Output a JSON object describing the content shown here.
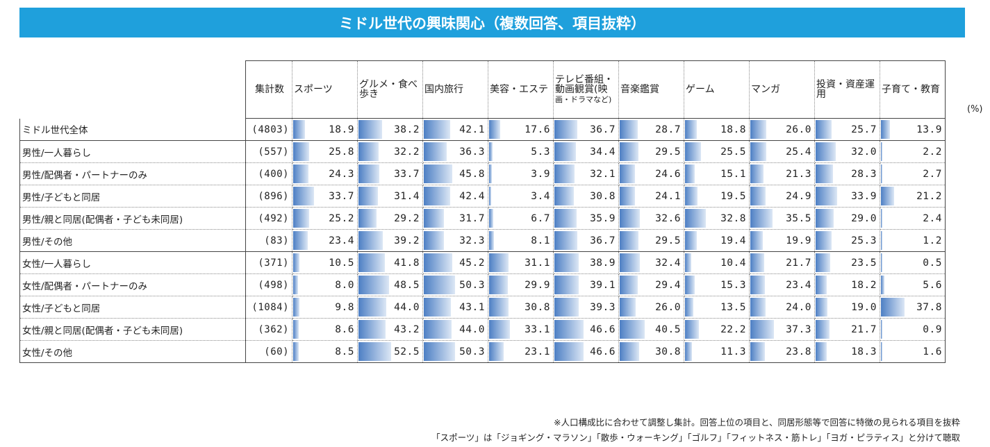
{
  "title": "ミドル世代の興味関心（複数回答、項目抜粋）",
  "unit": "(%)",
  "count_header": "集計数",
  "notes": [
    "※人口構成比に合わせて調整し集計。回答上位の項目と、同居形態等で回答に特徴の見られる項目を抜粋",
    "「スポーツ」は「ジョギング・マラソン」「散歩・ウォーキング」「ゴルフ」「フィットネス・筋トレ」「ヨガ・ピラティス」と分けて聴取"
  ],
  "chart_data": {
    "type": "table",
    "title": "ミドル世代の興味関心（複数回答、項目抜粋）",
    "columns": [
      {
        "main": "スポーツ",
        "small": ""
      },
      {
        "main": "グルメ・食べ歩き",
        "small": ""
      },
      {
        "main": "国内旅行",
        "small": ""
      },
      {
        "main": "美容・エステ",
        "small": ""
      },
      {
        "main": "テレビ番組・動画観賞(映",
        "small": "画・ドラマなど)"
      },
      {
        "main": "音楽鑑賞",
        "small": ""
      },
      {
        "main": "ゲーム",
        "small": ""
      },
      {
        "main": "マンガ",
        "small": ""
      },
      {
        "main": "投資・資産運用",
        "small": ""
      },
      {
        "main": "子育て・教育",
        "small": ""
      }
    ],
    "rows": [
      {
        "label": "ミドル世代全体",
        "n": "(4803)",
        "values": [
          "18.9",
          "38.2",
          "42.1",
          "17.6",
          "36.7",
          "28.7",
          "18.8",
          "26.0",
          "25.7",
          "13.9"
        ]
      },
      {
        "label": "男性/一人暮らし",
        "n": "(557)",
        "values": [
          "25.8",
          "32.2",
          "36.3",
          "5.3",
          "34.4",
          "29.5",
          "25.5",
          "25.4",
          "32.0",
          "2.2"
        ]
      },
      {
        "label": "男性/配偶者・パートナーのみ",
        "n": "(400)",
        "values": [
          "24.3",
          "33.7",
          "45.8",
          "3.9",
          "32.1",
          "24.6",
          "15.1",
          "21.3",
          "28.3",
          "2.7"
        ]
      },
      {
        "label": "男性/子どもと同居",
        "n": "(896)",
        "values": [
          "33.7",
          "31.4",
          "42.4",
          "3.4",
          "30.8",
          "24.1",
          "19.5",
          "24.9",
          "33.9",
          "21.2"
        ]
      },
      {
        "label": "男性/親と同居(配偶者・子ども未同居)",
        "n": "(492)",
        "values": [
          "25.2",
          "29.2",
          "31.7",
          "6.7",
          "35.9",
          "32.6",
          "32.8",
          "35.5",
          "29.0",
          "2.4"
        ]
      },
      {
        "label": "男性/その他",
        "n": "(83)",
        "values": [
          "23.4",
          "39.2",
          "32.3",
          "8.1",
          "36.7",
          "29.5",
          "19.4",
          "19.9",
          "25.3",
          "1.2"
        ]
      },
      {
        "label": "女性/一人暮らし",
        "n": "(371)",
        "values": [
          "10.5",
          "41.8",
          "45.2",
          "31.1",
          "38.9",
          "32.4",
          "10.4",
          "21.7",
          "23.5",
          "0.5"
        ]
      },
      {
        "label": "女性/配偶者・パートナーのみ",
        "n": "(498)",
        "values": [
          "8.0",
          "48.5",
          "50.3",
          "29.9",
          "39.1",
          "29.4",
          "15.3",
          "23.4",
          "18.2",
          "5.6"
        ]
      },
      {
        "label": "女性/子どもと同居",
        "n": "(1084)",
        "values": [
          "9.8",
          "44.0",
          "43.1",
          "30.8",
          "39.3",
          "26.0",
          "13.5",
          "24.0",
          "19.0",
          "37.8"
        ]
      },
      {
        "label": "女性/親と同居(配偶者・子ども未同居)",
        "n": "(362)",
        "values": [
          "8.6",
          "43.2",
          "44.0",
          "33.1",
          "46.6",
          "40.5",
          "22.2",
          "37.3",
          "21.7",
          "0.9"
        ]
      },
      {
        "label": "女性/その他",
        "n": "(60)",
        "values": [
          "8.5",
          "52.5",
          "50.3",
          "23.1",
          "46.6",
          "30.8",
          "11.3",
          "23.8",
          "18.3",
          "1.6"
        ]
      }
    ],
    "bar_scale_max": 100
  }
}
